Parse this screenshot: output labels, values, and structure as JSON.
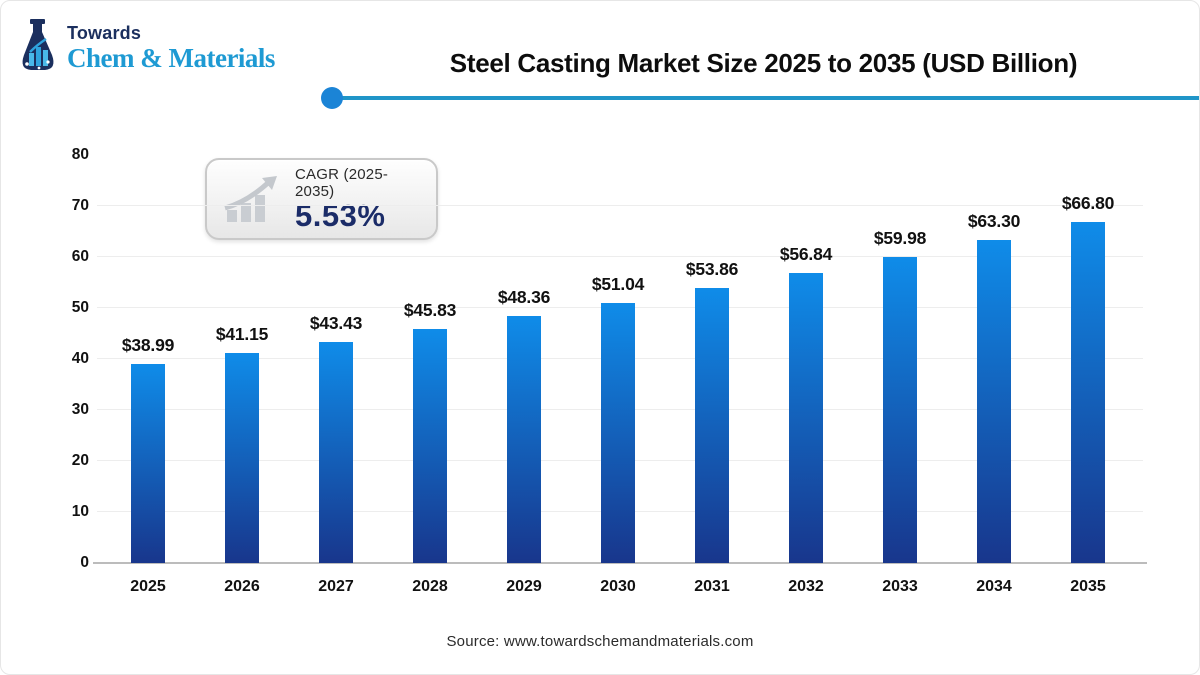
{
  "logo": {
    "towards": "Towards",
    "brand": "Chem & Materials"
  },
  "header": {
    "title": "Steel Casting Market Size 2025 to 2035 (USD Billion)"
  },
  "cagr_badge": {
    "label": "CAGR (2025-2035)",
    "value": "5.53%"
  },
  "footer": {
    "source": "Source: www.towardschemandmaterials.com"
  },
  "colors": {
    "bar_top": "#0f8ce9",
    "bar_bottom": "#18368c",
    "divider_line": "#2095c8",
    "divider_dot": "#1b84d6",
    "brand_blue": "#1e9ad3",
    "brand_navy": "#1b2f5e",
    "cagr_value_navy": "#1b2c68"
  },
  "chart_data": {
    "type": "bar",
    "title": "Steel Casting Market Size 2025 to 2035 (USD Billion)",
    "categories": [
      "2025",
      "2026",
      "2027",
      "2028",
      "2029",
      "2030",
      "2031",
      "2032",
      "2033",
      "2034",
      "2035"
    ],
    "values": [
      38.99,
      41.15,
      43.43,
      45.83,
      48.36,
      51.04,
      53.86,
      56.84,
      59.98,
      63.3,
      66.8
    ],
    "labels": [
      "$38.99",
      "$41.15",
      "$43.43",
      "$45.83",
      "$48.36",
      "$51.04",
      "$53.86",
      "$56.84",
      "$59.98",
      "$63.30",
      "$66.80"
    ],
    "xlabel": "",
    "ylabel": "",
    "ylim": [
      0,
      80
    ],
    "y_ticks": [
      0,
      10,
      20,
      30,
      40,
      50,
      60,
      70,
      80
    ],
    "grid": true,
    "legend": "none",
    "bar_gradient": [
      "#18368c",
      "#0f8ce9"
    ]
  }
}
